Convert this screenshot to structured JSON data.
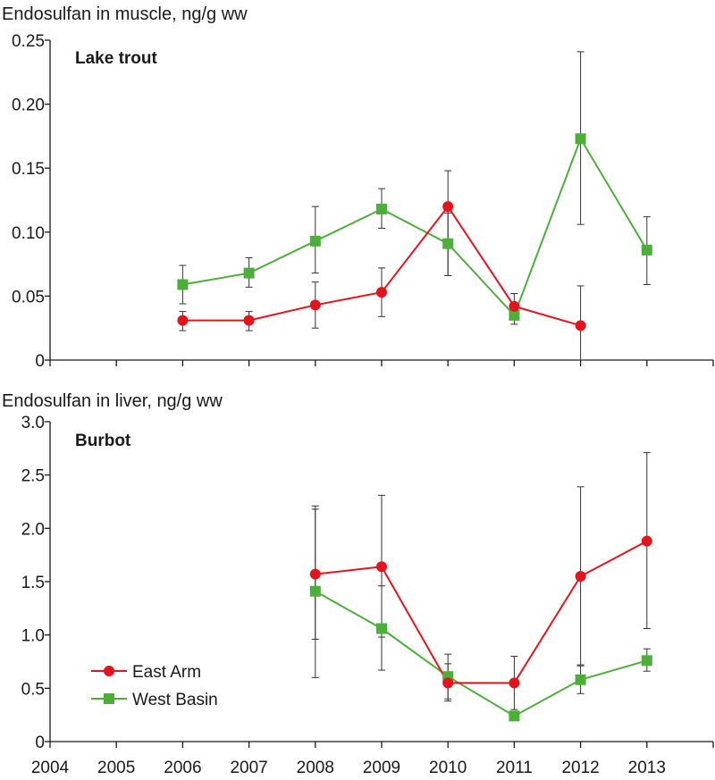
{
  "colors": {
    "east_arm": "#e3141e",
    "west_basin": "#4caf3a",
    "axis": "#1a1a1a",
    "errorbar": "#333333"
  },
  "chart_data": [
    {
      "type": "line",
      "panel": "top",
      "title": "Lake trout",
      "ylabel": "Endosulfan in muscle, ng/g ww",
      "xlabel": "",
      "xlim": [
        2004,
        2014
      ],
      "ylim": [
        0,
        0.25
      ],
      "yticks": [
        0,
        0.05,
        0.1,
        0.15,
        0.2,
        0.25
      ],
      "ytick_labels": [
        "0",
        "0.05",
        "0.10",
        "0.15",
        "0.20",
        "0.25"
      ],
      "series": [
        {
          "name": "East Arm",
          "marker": "circle",
          "color_key": "east_arm",
          "x": [
            2006,
            2007,
            2008,
            2009,
            2010,
            2011,
            2012
          ],
          "y": [
            0.031,
            0.031,
            0.043,
            0.053,
            0.12,
            0.042,
            0.027
          ],
          "err_low": [
            0.023,
            0.023,
            0.025,
            0.034,
            0.066,
            0.033,
            0.0
          ],
          "err_high": [
            0.038,
            0.038,
            0.061,
            0.072,
            0.148,
            0.052,
            0.058
          ]
        },
        {
          "name": "West Basin",
          "marker": "square",
          "color_key": "west_basin",
          "x": [
            2006,
            2007,
            2008,
            2009,
            2010,
            2011,
            2012,
            2013
          ],
          "y": [
            0.059,
            0.068,
            0.093,
            0.118,
            0.091,
            0.035,
            0.173,
            0.086
          ],
          "err_low": [
            0.044,
            0.057,
            0.068,
            0.103,
            0.066,
            0.028,
            0.106,
            0.059
          ],
          "err_high": [
            0.074,
            0.08,
            0.12,
            0.134,
            0.115,
            0.042,
            0.241,
            0.112
          ]
        }
      ]
    },
    {
      "type": "line",
      "panel": "bottom",
      "title": "Burbot",
      "ylabel": "Endosulfan in liver, ng/g ww",
      "xlabel": "",
      "xlim": [
        2004,
        2014
      ],
      "ylim": [
        0,
        3.0
      ],
      "yticks": [
        0,
        0.5,
        1.0,
        1.5,
        2.0,
        2.5,
        3.0
      ],
      "ytick_labels": [
        "0",
        "0.5",
        "1.0",
        "1.5",
        "2.0",
        "2.5",
        "3.0"
      ],
      "xticks": [
        2004,
        2005,
        2006,
        2007,
        2008,
        2009,
        2010,
        2011,
        2012,
        2013
      ],
      "xtick_labels": [
        "2004",
        "2005",
        "2006",
        "2007",
        "2008",
        "2009",
        "2010",
        "2011",
        "2012",
        "2013"
      ],
      "legend": [
        "East Arm",
        "West Basin"
      ],
      "legend_position": "bottom-left",
      "series": [
        {
          "name": "East Arm",
          "marker": "circle",
          "color_key": "east_arm",
          "x": [
            2008,
            2009,
            2010,
            2011,
            2012,
            2013
          ],
          "y": [
            1.57,
            1.64,
            0.55,
            0.55,
            1.55,
            1.88
          ],
          "err_low": [
            0.96,
            0.98,
            0.4,
            0.3,
            0.72,
            1.06
          ],
          "err_high": [
            2.18,
            2.31,
            0.82,
            0.8,
            2.39,
            2.71
          ]
        },
        {
          "name": "West Basin",
          "marker": "square",
          "color_key": "west_basin",
          "x": [
            2008,
            2009,
            2010,
            2011,
            2012,
            2013
          ],
          "y": [
            1.41,
            1.06,
            0.61,
            0.24,
            0.58,
            0.76
          ],
          "err_low": [
            0.6,
            0.67,
            0.38,
            0.2,
            0.45,
            0.66
          ],
          "err_high": [
            2.21,
            1.46,
            0.73,
            0.28,
            0.71,
            0.87
          ]
        }
      ]
    }
  ]
}
